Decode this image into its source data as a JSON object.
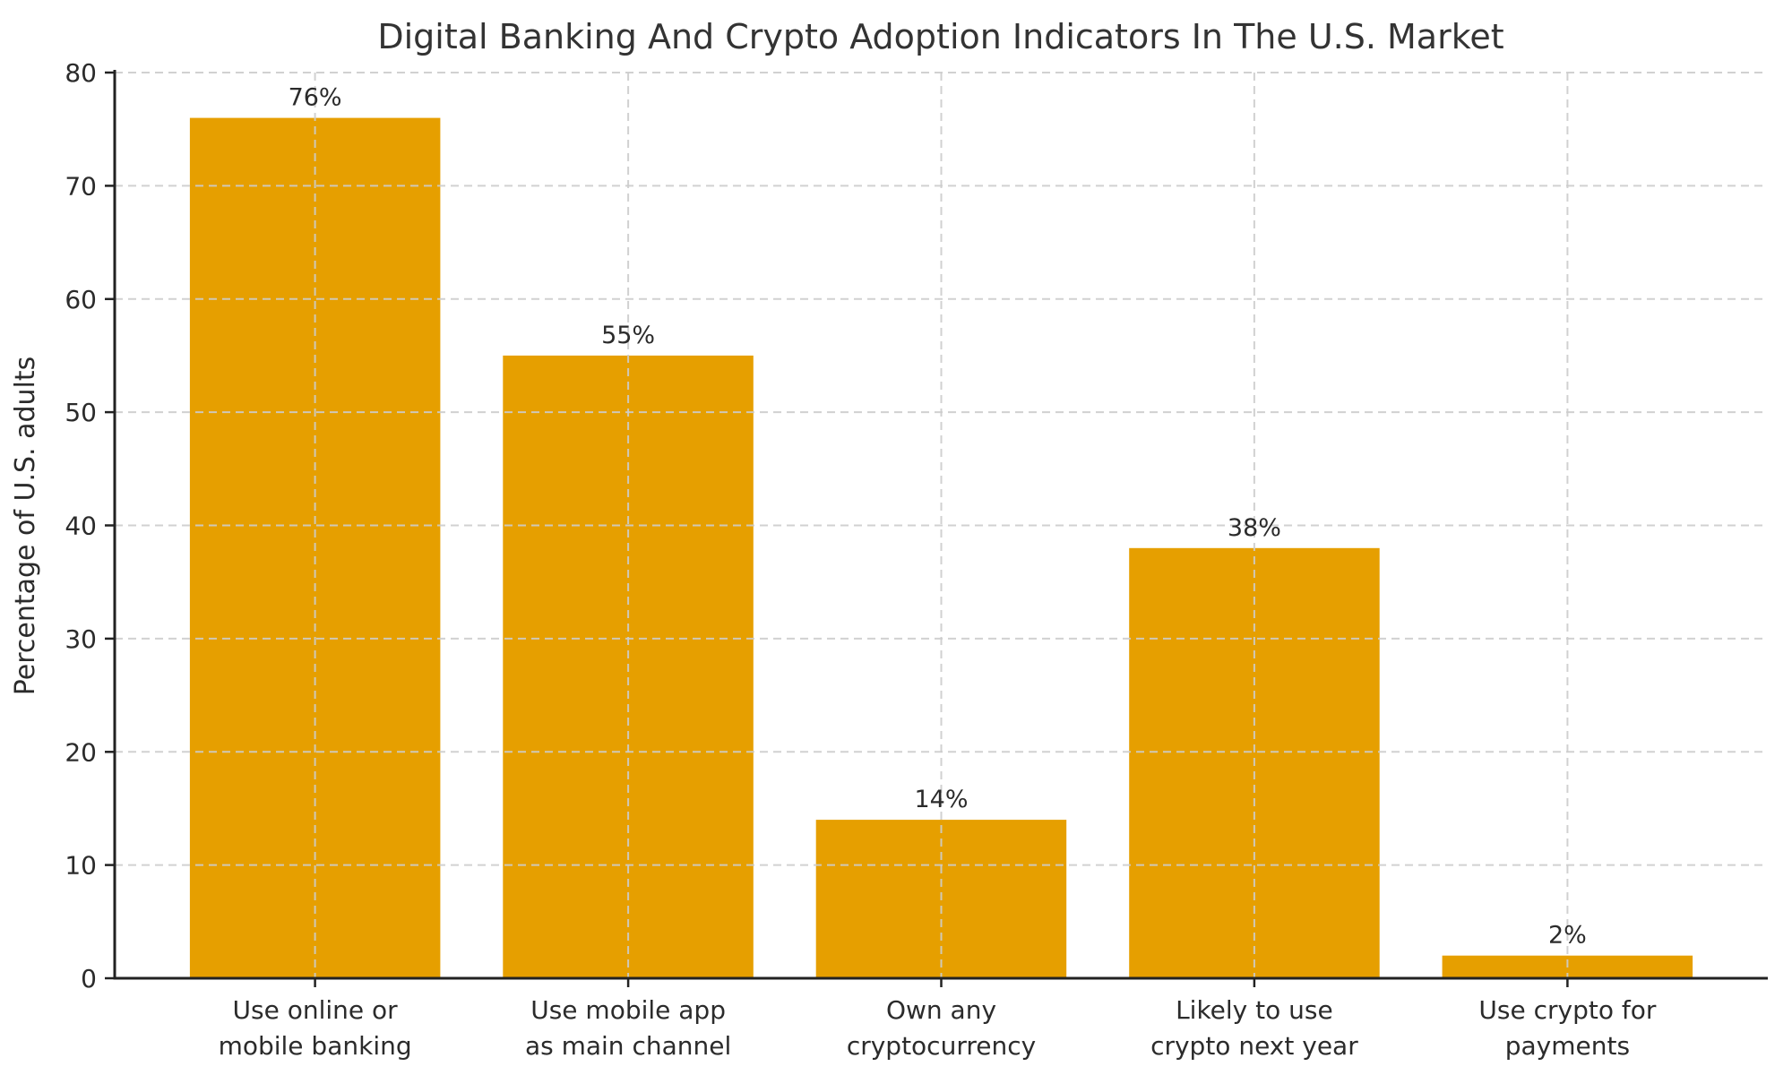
{
  "chart_data": {
    "type": "bar",
    "title": "Digital Banking And Crypto Adoption Indicators In The U.S. Market",
    "xlabel": "",
    "ylabel": "Percentage of U.S. adults",
    "categories": [
      "Use online or\nmobile banking",
      "Use mobile app\nas main channel",
      "Own any\ncryptocurrency",
      "Likely to use\ncrypto next year",
      "Use crypto for\npayments"
    ],
    "values": [
      76,
      55,
      14,
      38,
      2
    ],
    "value_labels": [
      "76%",
      "55%",
      "14%",
      "38%",
      "2%"
    ],
    "ylim": [
      0,
      80
    ],
    "yticks": [
      0,
      10,
      20,
      30,
      40,
      50,
      60,
      70,
      80
    ],
    "grid": "dashed, horizontal at each ytick and vertical at each bar center, drawn above bars",
    "legend": "none",
    "colors": {
      "bar": "#E69F00",
      "title_text": "#333333",
      "label_text": "#2b2b2b",
      "spine": "#222222",
      "gridline": "#cccccc",
      "background": "#ffffff"
    }
  }
}
